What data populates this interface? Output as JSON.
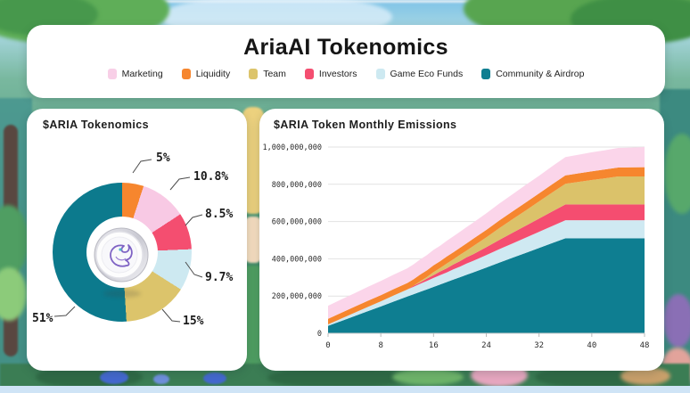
{
  "header": {
    "title": "AriaAI Tokenomics"
  },
  "legend": [
    {
      "label": "Marketing",
      "color": "#f8cfe7"
    },
    {
      "label": "Liquidity",
      "color": "#f6862e"
    },
    {
      "label": "Team",
      "color": "#dcc46b"
    },
    {
      "label": "Investors",
      "color": "#f44e70"
    },
    {
      "label": "Game Eco Funds",
      "color": "#cde9f1"
    },
    {
      "label": "Community & Airdrop",
      "color": "#0e7e91"
    }
  ],
  "left_panel": {
    "title": "$ARIA Tokenomics"
  },
  "right_panel": {
    "title": "$ARIA Token Monthly Emissions"
  },
  "chart_data": [
    {
      "type": "pie",
      "title": "$ARIA Tokenomics",
      "donut": true,
      "start_angle_deg": 0,
      "direction": "clockwise",
      "slices": [
        {
          "label": "Liquidity",
          "percent": 5,
          "display": "5%",
          "color": "#f6862e"
        },
        {
          "label": "Marketing",
          "percent": 10.8,
          "display": "10.8%",
          "color": "#f8c9e4"
        },
        {
          "label": "Investors",
          "percent": 8.5,
          "display": "8.5%",
          "color": "#f44e70"
        },
        {
          "label": "Game Eco Funds",
          "percent": 9.7,
          "display": "9.7%",
          "color": "#cde9f1"
        },
        {
          "label": "Team",
          "percent": 15,
          "display": "15%",
          "color": "#dcc46b"
        },
        {
          "label": "Community & Airdrop",
          "percent": 51,
          "display": "51%",
          "color": "#0c7a8d"
        }
      ]
    },
    {
      "type": "area",
      "title": "$ARIA Token Monthly Emissions",
      "stacked": true,
      "value_unit": "million_tokens",
      "xlim": [
        0,
        48
      ],
      "ylim": [
        0,
        1000
      ],
      "grid": true,
      "x": [
        0,
        2,
        4,
        6,
        8,
        10,
        12,
        13,
        14,
        15,
        16,
        17,
        18,
        19,
        20,
        21,
        22,
        24,
        26,
        28,
        30,
        32,
        34,
        36,
        38,
        40,
        42,
        44,
        46,
        48
      ],
      "series": [
        {
          "name": "Community & Airdrop",
          "color": "#0e7e91",
          "values": [
            40,
            66,
            92,
            118,
            144,
            171,
            197,
            210,
            223,
            236,
            249,
            262,
            275,
            288,
            301,
            314,
            327,
            353,
            380,
            406,
            432,
            458,
            484,
            510,
            510,
            510,
            510,
            510,
            510,
            510
          ]
        },
        {
          "name": "Game Eco Funds",
          "color": "#cfe9f2",
          "values": [
            8,
            13,
            18,
            23,
            28,
            33,
            38,
            40,
            43,
            45,
            48,
            50,
            52,
            55,
            57,
            60,
            62,
            67,
            72,
            77,
            82,
            87,
            92,
            97,
            97,
            97,
            97,
            97,
            97,
            97
          ]
        },
        {
          "name": "Investors",
          "color": "#f54d70",
          "values": [
            0,
            0,
            0,
            0,
            0,
            0,
            0,
            6,
            8,
            13,
            15,
            20,
            22,
            27,
            29,
            34,
            35,
            42,
            50,
            57,
            64,
            71,
            78,
            85,
            85,
            85,
            85,
            85,
            85,
            85
          ]
        },
        {
          "name": "Team",
          "color": "#dbc26a",
          "values": [
            0,
            0,
            0,
            0,
            0,
            0,
            0,
            0,
            6,
            8,
            16,
            18,
            25,
            27,
            34,
            36,
            44,
            53,
            63,
            73,
            82,
            92,
            102,
            111,
            121,
            131,
            140,
            150,
            150,
            150
          ]
        },
        {
          "name": "Liquidity",
          "color": "#f6862e",
          "values": [
            30,
            31,
            32,
            33,
            33,
            34,
            35,
            35,
            36,
            36,
            37,
            37,
            38,
            38,
            38,
            39,
            39,
            40,
            41,
            42,
            43,
            43,
            44,
            45,
            46,
            47,
            48,
            48,
            49,
            50
          ]
        },
        {
          "name": "Marketing",
          "color": "#fbd5ea",
          "values": [
            70,
            72,
            73,
            75,
            76,
            78,
            79,
            80,
            81,
            82,
            83,
            83,
            84,
            85,
            86,
            87,
            87,
            89,
            91,
            92,
            94,
            95,
            97,
            98,
            100,
            102,
            103,
            105,
            106,
            108
          ]
        }
      ],
      "ytick_values": [
        0,
        200,
        400,
        600,
        800,
        1000
      ],
      "ytick_labels": [
        "0",
        "200,000,000",
        "400,000,000",
        "600,000,000",
        "800,000,000",
        "1,000,000,000"
      ],
      "xtick_values": [
        0,
        8,
        16,
        24,
        32,
        40,
        48
      ],
      "xtick_labels": [
        "0",
        "8",
        "16",
        "24",
        "32",
        "40",
        "48"
      ],
      "legend_position": "header"
    }
  ]
}
